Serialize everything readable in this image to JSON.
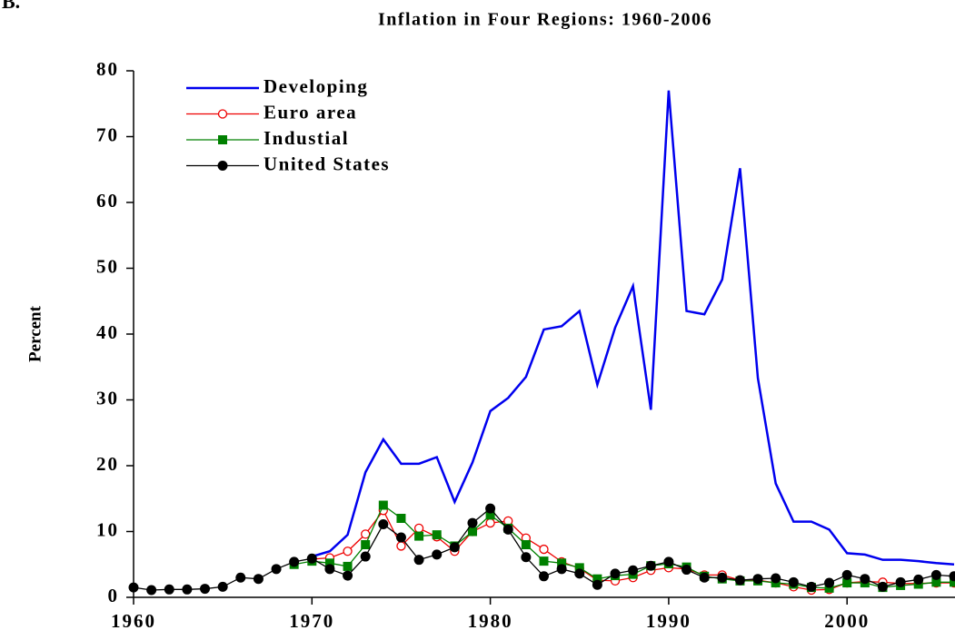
{
  "chart_data": {
    "type": "line",
    "panel_label": "B.",
    "title": "Inflation in Four Regions: 1960-2006",
    "ylabel": "Percent",
    "x": [
      1960,
      1961,
      1962,
      1963,
      1964,
      1965,
      1966,
      1967,
      1968,
      1969,
      1970,
      1971,
      1972,
      1973,
      1974,
      1975,
      1976,
      1977,
      1978,
      1979,
      1980,
      1981,
      1982,
      1983,
      1984,
      1985,
      1986,
      1987,
      1988,
      1989,
      1990,
      1991,
      1992,
      1993,
      1994,
      1995,
      1996,
      1997,
      1998,
      1999,
      2000,
      2001,
      2002,
      2003,
      2004,
      2005,
      2006
    ],
    "xlim": [
      1960,
      2006
    ],
    "xticks": [
      1960,
      1970,
      1980,
      1990,
      2000
    ],
    "ylim": [
      0,
      80
    ],
    "yticks": [
      0,
      10,
      20,
      30,
      40,
      50,
      60,
      70,
      80
    ],
    "legend": "upper left",
    "series": [
      {
        "name": "Developing",
        "color": "#0000ee",
        "marker": "none",
        "values": [
          null,
          null,
          null,
          null,
          null,
          null,
          null,
          null,
          null,
          null,
          6.2,
          7,
          9.5,
          19,
          24,
          20.3,
          20.3,
          21.3,
          14.5,
          20.5,
          28.3,
          30.3,
          33.5,
          40.7,
          41.2,
          43.5,
          32.3,
          41,
          47.3,
          28.5,
          77,
          43.5,
          43,
          48.3,
          65.2,
          33.3,
          17.3,
          11.5,
          11.5,
          10.3,
          6.7,
          6.5,
          5.7,
          5.7,
          5.5,
          5.2,
          5
        ]
      },
      {
        "name": "Euro area",
        "color": "#ee0000",
        "marker": "open-circle",
        "values": [
          null,
          null,
          null,
          null,
          null,
          null,
          null,
          null,
          null,
          null,
          5.8,
          6.0,
          7.0,
          9.6,
          13.2,
          7.8,
          10.5,
          9.2,
          7.0,
          10.0,
          11.3,
          11.6,
          9.0,
          7.3,
          5.4,
          4.4,
          2.6,
          2.5,
          3.0,
          4.1,
          4.5,
          4.3,
          3.4,
          3.4,
          2.6,
          2.6,
          2.2,
          1.6,
          1.1,
          1.2,
          2.2,
          2.4,
          2.3,
          2.1,
          2.1,
          2.2,
          2.2
        ]
      },
      {
        "name": "Industial",
        "color": "#008000",
        "marker": "square",
        "values": [
          null,
          null,
          null,
          null,
          null,
          null,
          null,
          null,
          null,
          5.0,
          5.5,
          5.2,
          4.7,
          8.0,
          14.0,
          12.0,
          9.3,
          9.5,
          7.8,
          10.0,
          12.5,
          10.5,
          8.0,
          5.5,
          5.2,
          4.5,
          2.8,
          3.3,
          3.5,
          4.8,
          5.1,
          4.6,
          3.2,
          2.8,
          2.5,
          2.5,
          2.2,
          2.0,
          1.5,
          1.4,
          2.2,
          2.2,
          1.5,
          1.8,
          2.0,
          2.3,
          2.3
        ]
      },
      {
        "name": "United States",
        "color": "#000000",
        "marker": "circle",
        "values": [
          1.5,
          1.1,
          1.2,
          1.2,
          1.3,
          1.6,
          3.0,
          2.8,
          4.3,
          5.4,
          5.9,
          4.3,
          3.3,
          6.2,
          11.1,
          9.1,
          5.7,
          6.5,
          7.6,
          11.3,
          13.5,
          10.3,
          6.1,
          3.2,
          4.3,
          3.6,
          1.9,
          3.6,
          4.1,
          4.8,
          5.4,
          4.2,
          3.0,
          3.0,
          2.6,
          2.8,
          2.9,
          2.3,
          1.6,
          2.2,
          3.4,
          2.8,
          1.6,
          2.3,
          2.7,
          3.4,
          3.2
        ]
      }
    ]
  }
}
